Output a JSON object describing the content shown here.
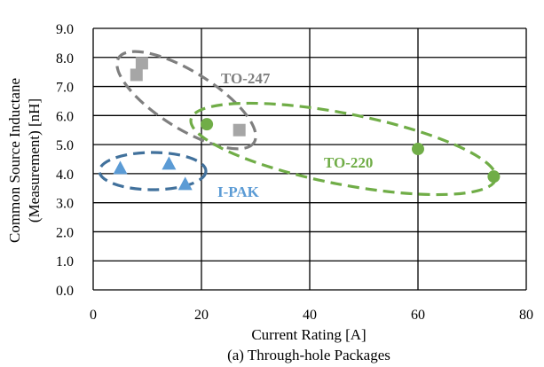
{
  "caption": "(a) Through-hole Packages",
  "chart_data": {
    "type": "scatter",
    "title": "",
    "xlabel": "Current Rating [A]",
    "ylabel_lines": [
      "Common Source Inductane",
      "(Measurement) [nH]"
    ],
    "xlim": [
      0,
      80
    ],
    "ylim": [
      0,
      9
    ],
    "x_ticks": [
      0,
      20,
      40,
      60,
      80
    ],
    "y_ticks": [
      0,
      1,
      2,
      3,
      4,
      5,
      6,
      7,
      8,
      9
    ],
    "x_tick_labels": [
      "0",
      "20",
      "40",
      "60",
      "80"
    ],
    "y_tick_labels": [
      "0.0",
      "1.0",
      "2.0",
      "3.0",
      "4.0",
      "5.0",
      "6.0",
      "7.0",
      "8.0",
      "9.0"
    ],
    "grid": true,
    "series": [
      {
        "name": "TO-247",
        "marker": "square",
        "color": "#a6a6a6",
        "label_color": "#7f7f7f",
        "points": [
          [
            8,
            7.4
          ],
          [
            9,
            7.8
          ],
          [
            27,
            5.5
          ]
        ]
      },
      {
        "name": "TO-220",
        "marker": "circle",
        "color": "#70ad47",
        "label_color": "#70ad47",
        "points": [
          [
            21,
            5.7
          ],
          [
            60,
            4.85
          ],
          [
            74,
            3.9
          ]
        ]
      },
      {
        "name": "I-PAK",
        "marker": "triangle",
        "color": "#5b9bd5",
        "label_color": "#5b9bd5",
        "points": [
          [
            5,
            4.2
          ],
          [
            14,
            4.35
          ],
          [
            17,
            3.65
          ]
        ]
      }
    ]
  }
}
